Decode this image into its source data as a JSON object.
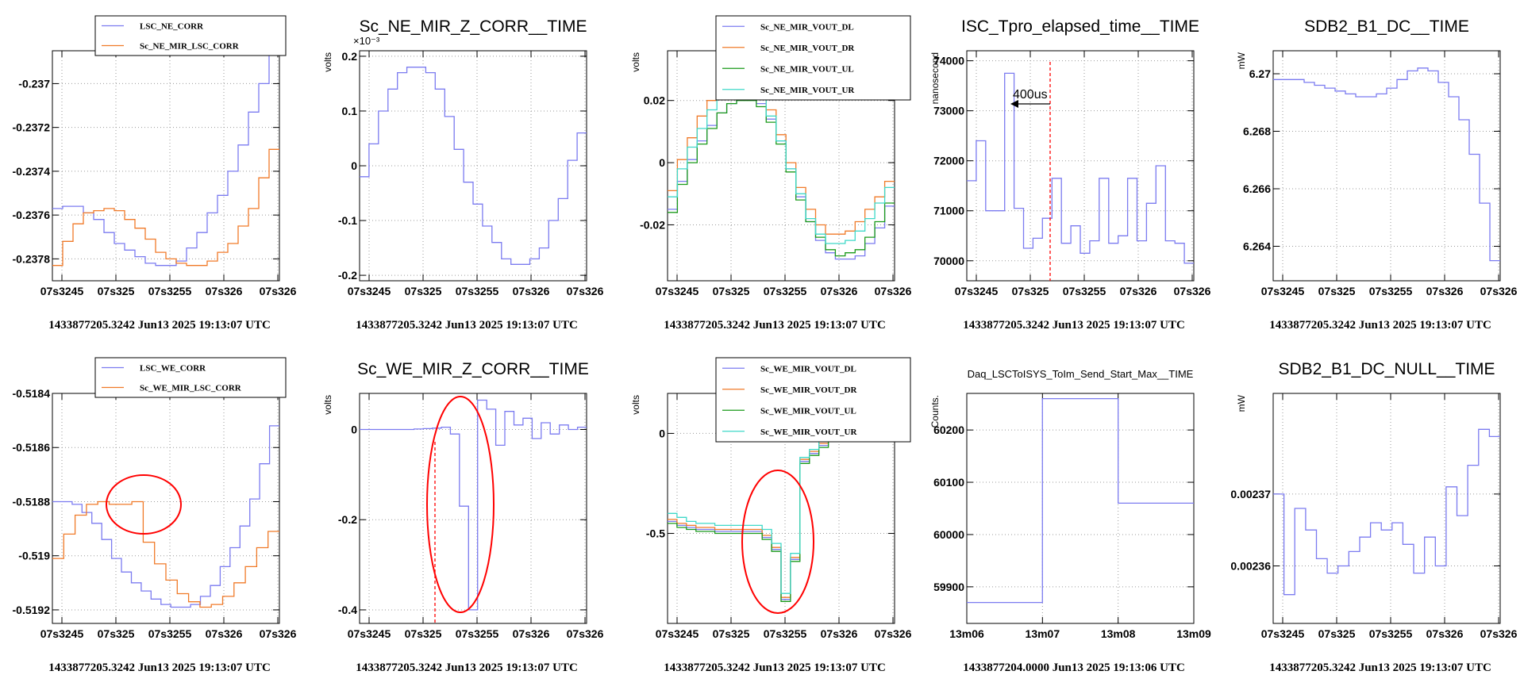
{
  "colors": {
    "blue": "#7b7bf0",
    "orange": "#f07a28",
    "green": "#1a9a1a",
    "cyan": "#3ed8c8",
    "red": "#ff0000",
    "grid": "#9a9a9a"
  },
  "chart_data": [
    {
      "type": "line",
      "step": true,
      "title": "",
      "ylabel": "",
      "footer": "1433877205.3242 Jun13 2025 19:13:07 UTC",
      "xticks": [
        "07s3245",
        "07s325",
        "07s3255",
        "07s326",
        "07s326"
      ],
      "ylim": [
        -0.2379,
        -0.23685
      ],
      "yticks": [
        -0.2378,
        -0.2376,
        -0.2374,
        -0.2372,
        -0.237
      ],
      "ytick_labels": [
        "-0.2378",
        "-0.2376",
        "-0.2374",
        "-0.2372",
        "-0.237"
      ],
      "legend": [
        {
          "name": "LSC_NE_CORR",
          "color": "blue"
        },
        {
          "name": "Sc_NE_MIR_LSC_CORR",
          "color": "orange"
        }
      ],
      "series": [
        {
          "color": "blue",
          "values": [
            -0.23757,
            -0.23756,
            -0.23756,
            -0.23759,
            -0.23762,
            -0.23768,
            -0.23773,
            -0.23776,
            -0.23779,
            -0.23782,
            -0.23783,
            -0.23783,
            -0.23781,
            -0.23775,
            -0.23768,
            -0.23759,
            -0.23751,
            -0.2374,
            -0.23728,
            -0.23713,
            -0.237,
            -0.2368
          ]
        },
        {
          "color": "orange",
          "values": [
            -0.23783,
            -0.23772,
            -0.23764,
            -0.23759,
            -0.23758,
            -0.23757,
            -0.23758,
            -0.23762,
            -0.23766,
            -0.23771,
            -0.23777,
            -0.2378,
            -0.23782,
            -0.23783,
            -0.23783,
            -0.23781,
            -0.23777,
            -0.23773,
            -0.23765,
            -0.23757,
            -0.23743,
            -0.2373
          ]
        }
      ]
    },
    {
      "type": "line",
      "step": true,
      "title": "Sc_NE_MIR_Z_CORR__TIME",
      "ylabel": "volts",
      "multiplier": "×10⁻³",
      "footer": "1433877205.3242 Jun13 2025 19:13:07 UTC",
      "xticks": [
        "07s3245",
        "07s325",
        "07s3255",
        "07s326",
        "07s326"
      ],
      "ylim": [
        -0.21,
        0.21
      ],
      "yticks": [
        -0.2,
        -0.1,
        0,
        0.1,
        0.2
      ],
      "ytick_labels": [
        "-0.2",
        "-0.1",
        "0",
        "0.1",
        "0.2"
      ],
      "legend": [],
      "series": [
        {
          "color": "blue",
          "values": [
            -0.02,
            0.04,
            0.1,
            0.14,
            0.17,
            0.18,
            0.18,
            0.17,
            0.14,
            0.09,
            0.03,
            -0.03,
            -0.07,
            -0.11,
            -0.14,
            -0.17,
            -0.18,
            -0.18,
            -0.17,
            -0.15,
            -0.1,
            -0.06,
            0.01,
            0.06
          ]
        }
      ]
    },
    {
      "type": "line",
      "step": true,
      "title": "",
      "ylabel": "volts",
      "footer": "1433877205.3242 Jun13 2025 19:13:07 UTC",
      "xticks": [
        "07s3245",
        "07s325",
        "07s3255",
        "07s326",
        "07s326"
      ],
      "ylim": [
        -0.038,
        0.036
      ],
      "yticks": [
        -0.02,
        0,
        0.02
      ],
      "ytick_labels": [
        "-0.02",
        "0",
        "0.02"
      ],
      "legend": [
        {
          "name": "Sc_NE_MIR_VOUT_DL",
          "color": "blue"
        },
        {
          "name": "Sc_NE_MIR_VOUT_DR",
          "color": "orange"
        },
        {
          "name": "Sc_NE_MIR_VOUT_UL",
          "color": "green"
        },
        {
          "name": "Sc_NE_MIR_VOUT_UR",
          "color": "cyan"
        }
      ],
      "series": [
        {
          "color": "blue",
          "values": [
            -0.015,
            -0.006,
            0.001,
            0.007,
            0.012,
            0.016,
            0.019,
            0.021,
            0.021,
            0.019,
            0.014,
            0.007,
            -0.002,
            -0.011,
            -0.019,
            -0.025,
            -0.029,
            -0.031,
            -0.031,
            -0.03,
            -0.026,
            -0.021,
            -0.014
          ]
        },
        {
          "color": "orange",
          "values": [
            -0.009,
            0.001,
            0.008,
            0.015,
            0.02,
            0.025,
            0.028,
            0.03,
            0.028,
            0.024,
            0.017,
            0.009,
            0.0,
            -0.008,
            -0.015,
            -0.02,
            -0.023,
            -0.023,
            -0.022,
            -0.019,
            -0.015,
            -0.011,
            -0.006
          ]
        },
        {
          "color": "green",
          "values": [
            -0.016,
            -0.007,
            0.0,
            0.006,
            0.011,
            0.016,
            0.019,
            0.02,
            0.02,
            0.018,
            0.013,
            0.006,
            -0.003,
            -0.012,
            -0.019,
            -0.024,
            -0.028,
            -0.03,
            -0.029,
            -0.028,
            -0.024,
            -0.019,
            -0.013
          ]
        },
        {
          "color": "cyan",
          "values": [
            -0.011,
            -0.002,
            0.005,
            0.011,
            0.017,
            0.021,
            0.025,
            0.026,
            0.025,
            0.021,
            0.015,
            0.007,
            -0.002,
            -0.01,
            -0.018,
            -0.023,
            -0.026,
            -0.026,
            -0.025,
            -0.022,
            -0.018,
            -0.013,
            -0.008
          ]
        }
      ]
    },
    {
      "type": "line",
      "step": true,
      "title": "ISC_Tpro_elapsed_time__TIME",
      "ylabel": "nanosecond",
      "footer": "1433877205.3242 Jun13 2025 19:13:07 UTC",
      "xticks": [
        "07s3245",
        "07s325",
        "07s3255",
        "07s326",
        "07s326"
      ],
      "ylim": [
        69600,
        74200
      ],
      "yticks": [
        70000,
        71000,
        72000,
        73000,
        74000
      ],
      "ytick_labels": [
        "70000",
        "71000",
        "72000",
        "73000",
        "74000"
      ],
      "legend": [],
      "annotation": "400us",
      "series": [
        {
          "color": "blue",
          "values": [
            71600,
            72400,
            71000,
            71000,
            73750,
            71050,
            70250,
            70450,
            70850,
            71650,
            70350,
            70700,
            70150,
            70400,
            71650,
            70350,
            70500,
            71650,
            70400,
            71150,
            71900,
            70400,
            70350,
            69950
          ]
        }
      ]
    },
    {
      "type": "line",
      "step": true,
      "title": "SDB2_B1_DC__TIME",
      "ylabel": "mW",
      "footer": "1433877205.3242 Jun13 2025 19:13:07 UTC",
      "xticks": [
        "07s3245",
        "07s325",
        "07s3255",
        "07s326",
        "07s326"
      ],
      "ylim": [
        6.2628,
        6.2708
      ],
      "yticks": [
        6.264,
        6.266,
        6.268,
        6.27
      ],
      "ytick_labels": [
        "6.264",
        "6.266",
        "6.268",
        "6.27"
      ],
      "legend": [],
      "series": [
        {
          "color": "blue",
          "values": [
            6.2698,
            6.2698,
            6.2698,
            6.2697,
            6.2696,
            6.2695,
            6.2694,
            6.2693,
            6.2692,
            6.2692,
            6.2693,
            6.2695,
            6.2698,
            6.2701,
            6.2702,
            6.2701,
            6.2697,
            6.2692,
            6.2684,
            6.2672,
            6.2655,
            6.2635
          ]
        }
      ]
    },
    {
      "type": "line",
      "step": true,
      "title": "",
      "ylabel": "",
      "footer": "1433877205.3242 Jun13 2025 19:13:07 UTC",
      "xticks": [
        "07s3245",
        "07s325",
        "07s3255",
        "07s326",
        "07s326"
      ],
      "ylim": [
        -0.51925,
        -0.5184
      ],
      "yticks": [
        -0.5192,
        -0.519,
        -0.5188,
        -0.5186,
        -0.5184
      ],
      "ytick_labels": [
        "-0.5192",
        "-0.519",
        "-0.5188",
        "-0.5186",
        "-0.5184"
      ],
      "legend": [
        {
          "name": "LSC_WE_CORR",
          "color": "blue"
        },
        {
          "name": "Sc_WE_MIR_LSC_CORR",
          "color": "orange"
        }
      ],
      "series": [
        {
          "color": "blue",
          "values": [
            -0.5188,
            -0.5188,
            -0.51881,
            -0.51884,
            -0.51888,
            -0.51894,
            -0.51901,
            -0.51906,
            -0.5191,
            -0.51913,
            -0.51916,
            -0.51918,
            -0.51919,
            -0.51919,
            -0.51918,
            -0.51915,
            -0.51911,
            -0.51904,
            -0.51897,
            -0.51889,
            -0.51879,
            -0.51866,
            -0.51852
          ]
        },
        {
          "color": "orange",
          "values": [
            -0.51901,
            -0.51892,
            -0.51885,
            -0.51881,
            -0.5188,
            -0.51881,
            -0.51881,
            -0.5188,
            -0.51895,
            -0.51903,
            -0.51909,
            -0.51914,
            -0.51917,
            -0.51919,
            -0.51918,
            -0.51915,
            -0.5191,
            -0.51904,
            -0.51897,
            -0.51891
          ]
        }
      ]
    },
    {
      "type": "line",
      "step": true,
      "title": "Sc_WE_MIR_Z_CORR__TIME",
      "ylabel": "volts",
      "footer": "1433877205.3242 Jun13 2025 19:13:07 UTC",
      "xticks": [
        "07s3245",
        "07s325",
        "07s3255",
        "07s326",
        "07s326"
      ],
      "ylim": [
        -0.43,
        0.08
      ],
      "yticks": [
        -0.4,
        -0.2,
        0
      ],
      "ytick_labels": [
        "-0.4",
        "-0.2",
        "0"
      ],
      "legend": [],
      "series": [
        {
          "color": "blue",
          "values": [
            0.0,
            0.0,
            0.0,
            0.0,
            0.0,
            0.0,
            0.001,
            0.002,
            0.003,
            0.005,
            -0.01,
            -0.17,
            -0.4,
            0.065,
            0.045,
            -0.035,
            0.04,
            0.01,
            0.025,
            -0.02,
            0.015,
            -0.01,
            0.01,
            0.0,
            0.005
          ]
        }
      ]
    },
    {
      "type": "line",
      "step": true,
      "title": "",
      "ylabel": "volts",
      "footer": "1433877205.3242 Jun13 2025 19:13:07 UTC",
      "xticks": [
        "07s3245",
        "07s325",
        "07s3255",
        "07s326",
        "07s326"
      ],
      "ylim": [
        -0.95,
        0.2
      ],
      "yticks": [
        -0.5,
        0
      ],
      "ytick_labels": [
        "-0.5",
        "0"
      ],
      "legend": [
        {
          "name": "Sc_WE_MIR_VOUT_DL",
          "color": "blue"
        },
        {
          "name": "Sc_WE_MIR_VOUT_DR",
          "color": "orange"
        },
        {
          "name": "Sc_WE_MIR_VOUT_UL",
          "color": "green"
        },
        {
          "name": "Sc_WE_MIR_VOUT_UR",
          "color": "cyan"
        }
      ],
      "series": [
        {
          "color": "blue",
          "values": [
            -0.44,
            -0.46,
            -0.47,
            -0.48,
            -0.48,
            -0.49,
            -0.49,
            -0.49,
            -0.49,
            -0.49,
            -0.52,
            -0.58,
            -0.83,
            -0.63,
            -0.14,
            -0.1,
            -0.06,
            -0.02,
            0.02,
            0.05,
            0.08,
            0.1,
            0.11,
            0.12
          ]
        },
        {
          "color": "orange",
          "values": [
            -0.43,
            -0.45,
            -0.46,
            -0.47,
            -0.47,
            -0.48,
            -0.48,
            -0.48,
            -0.48,
            -0.48,
            -0.51,
            -0.57,
            -0.82,
            -0.62,
            -0.13,
            -0.09,
            -0.05,
            -0.01,
            0.03,
            0.06,
            0.09,
            0.11,
            0.12,
            0.13
          ]
        },
        {
          "color": "green",
          "values": [
            -0.45,
            -0.47,
            -0.48,
            -0.49,
            -0.49,
            -0.5,
            -0.5,
            -0.5,
            -0.5,
            -0.5,
            -0.53,
            -0.59,
            -0.84,
            -0.64,
            -0.15,
            -0.11,
            -0.07,
            -0.03,
            0.01,
            0.04,
            0.07,
            0.09,
            0.1,
            0.11
          ]
        },
        {
          "color": "cyan",
          "values": [
            -0.4,
            -0.42,
            -0.44,
            -0.45,
            -0.45,
            -0.46,
            -0.46,
            -0.46,
            -0.46,
            -0.46,
            -0.48,
            -0.55,
            -0.8,
            -0.6,
            -0.12,
            -0.08,
            -0.04,
            0.0,
            0.04,
            0.07,
            0.1,
            0.12,
            0.14,
            0.15
          ]
        }
      ]
    },
    {
      "type": "line",
      "step": true,
      "title": "Daq_LSCToISYS_ToIm_Send_Start_Max__TIME",
      "ylabel": "Counts.",
      "footer": "1433877204.0000 Jun13 2025 19:13:06 UTC",
      "xticks": [
        "13m06",
        "13m07",
        "13m08",
        "13m09"
      ],
      "ylim": [
        59830,
        60270
      ],
      "yticks": [
        59900,
        60000,
        60100,
        60200
      ],
      "ytick_labels": [
        "59900",
        "60000",
        "60100",
        "60200"
      ],
      "legend": [],
      "series": [
        {
          "color": "blue",
          "values": [
            59870,
            60260,
            60060
          ]
        }
      ]
    },
    {
      "type": "line",
      "step": true,
      "title": "SDB2_B1_DC_NULL__TIME",
      "ylabel": "mW",
      "footer": "1433877205.3242 Jun13 2025 19:13:07 UTC",
      "xticks": [
        "07s3245",
        "07s325",
        "07s3255",
        "07s326",
        "07s326"
      ],
      "ylim": [
        0.002352,
        0.002384
      ],
      "yticks": [
        0.00236,
        0.00237
      ],
      "ytick_labels": [
        "0.00236",
        "0.00237"
      ],
      "legend": [],
      "series": [
        {
          "color": "blue",
          "values": [
            0.00237,
            0.002356,
            0.002368,
            0.002365,
            0.002361,
            0.002359,
            0.00236,
            0.002362,
            0.002364,
            0.002366,
            0.002365,
            0.002366,
            0.002363,
            0.002359,
            0.002364,
            0.00236,
            0.002371,
            0.002367,
            0.002374,
            0.002379,
            0.002378
          ]
        }
      ]
    }
  ]
}
